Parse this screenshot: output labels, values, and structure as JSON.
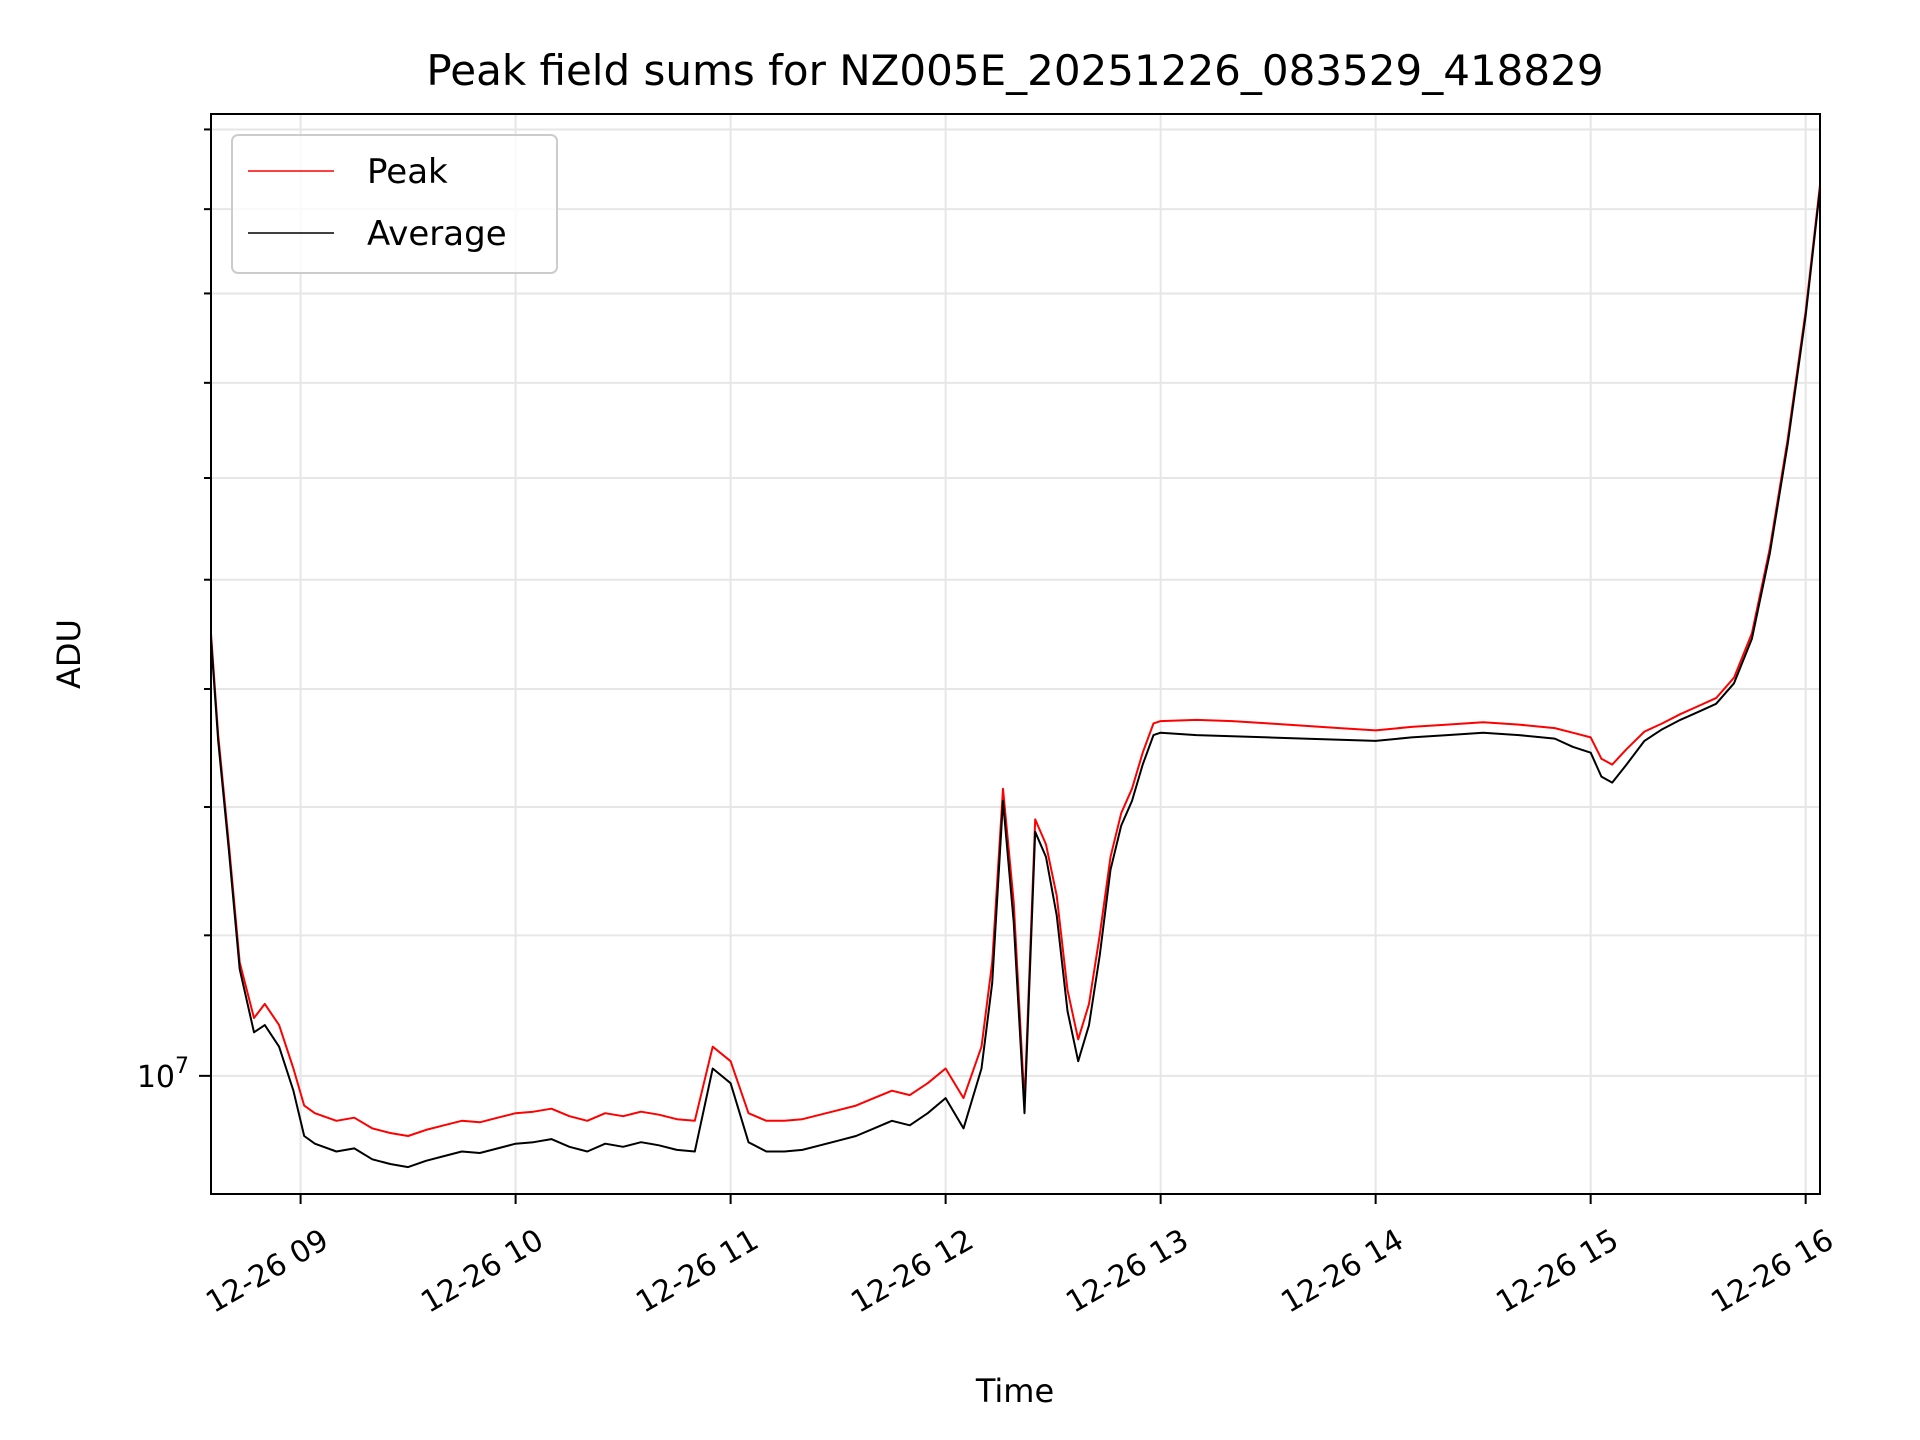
{
  "chart_data": {
    "type": "line",
    "title": "Peak field sums for NZ005E_20251226_083529_418829",
    "xlabel": "Time",
    "ylabel": "ADU",
    "y_scale": "log",
    "xlim": [
      "2025-12-26 08:35",
      "2025-12-26 16:04"
    ],
    "ylim": [
      9230000,
      19200000
    ],
    "x_ticks": [
      "12-26 09",
      "12-26 10",
      "12-26 11",
      "12-26 12",
      "12-26 13",
      "12-26 14",
      "12-26 15",
      "12-26 16"
    ],
    "y_tick_label_base": "10",
    "y_tick_label_exp": "7",
    "grid": true,
    "legend_position": "upper-left",
    "colors": {
      "peak": "#ff0000",
      "average": "#000000",
      "grid": "#e6e6e6"
    },
    "x": [
      "08:35",
      "08:37",
      "08:40",
      "08:43",
      "08:47",
      "08:50",
      "08:54",
      "08:58",
      "09:01",
      "09:04",
      "09:10",
      "09:15",
      "09:20",
      "09:25",
      "09:30",
      "09:35",
      "09:40",
      "09:45",
      "09:50",
      "09:55",
      "10:00",
      "10:05",
      "10:10",
      "10:15",
      "10:20",
      "10:25",
      "10:30",
      "10:35",
      "10:40",
      "10:45",
      "10:50",
      "10:55",
      "11:00",
      "11:05",
      "11:10",
      "11:15",
      "11:20",
      "11:25",
      "11:30",
      "11:35",
      "11:40",
      "11:45",
      "11:50",
      "11:55",
      "12:00",
      "12:05",
      "12:10",
      "12:13",
      "12:16",
      "12:19",
      "12:22",
      "12:25",
      "12:28",
      "12:31",
      "12:34",
      "12:37",
      "12:40",
      "12:43",
      "12:46",
      "12:49",
      "12:52",
      "12:55",
      "12:58",
      "13:00",
      "13:10",
      "13:20",
      "13:30",
      "13:40",
      "13:50",
      "14:00",
      "14:10",
      "14:20",
      "14:30",
      "14:40",
      "14:50",
      "14:55",
      "15:00",
      "15:03",
      "15:06",
      "15:10",
      "15:15",
      "15:20",
      "15:25",
      "15:30",
      "15:35",
      "15:40",
      "15:45",
      "15:50",
      "15:55",
      "16:00",
      "16:04"
    ],
    "series": [
      {
        "name": "Peak",
        "values": [
          13500000,
          12600000,
          11700000,
          10800000,
          10400000,
          10500000,
          10350000,
          10050000,
          9800000,
          9750000,
          9700000,
          9720000,
          9650000,
          9620000,
          9600000,
          9640000,
          9670000,
          9700000,
          9690000,
          9720000,
          9750000,
          9760000,
          9780000,
          9730000,
          9700000,
          9750000,
          9730000,
          9760000,
          9740000,
          9710000,
          9700000,
          10200000,
          10100000,
          9750000,
          9700000,
          9700000,
          9710000,
          9740000,
          9770000,
          9800000,
          9850000,
          9900000,
          9870000,
          9950000,
          10050000,
          9850000,
          10200000,
          10800000,
          12150000,
          11250000,
          9820000,
          11900000,
          11700000,
          11300000,
          10600000,
          10250000,
          10500000,
          11000000,
          11600000,
          11950000,
          12150000,
          12450000,
          12700000,
          12720000,
          12730000,
          12720000,
          12700000,
          12680000,
          12660000,
          12640000,
          12670000,
          12690000,
          12710000,
          12690000,
          12660000,
          12620000,
          12580000,
          12400000,
          12350000,
          12480000,
          12630000,
          12700000,
          12780000,
          12850000,
          12920000,
          13100000,
          13500000,
          14300000,
          15400000,
          16800000,
          18300000
        ]
      },
      {
        "name": "Average",
        "values": [
          13450000,
          12550000,
          11650000,
          10750000,
          10300000,
          10350000,
          10200000,
          9900000,
          9600000,
          9550000,
          9500000,
          9520000,
          9450000,
          9420000,
          9400000,
          9440000,
          9470000,
          9500000,
          9490000,
          9520000,
          9550000,
          9560000,
          9580000,
          9530000,
          9500000,
          9550000,
          9530000,
          9560000,
          9540000,
          9510000,
          9500000,
          10050000,
          9950000,
          9560000,
          9500000,
          9500000,
          9510000,
          9540000,
          9570000,
          9600000,
          9650000,
          9700000,
          9670000,
          9750000,
          9850000,
          9650000,
          10050000,
          10650000,
          12050000,
          11100000,
          9750000,
          11800000,
          11600000,
          11150000,
          10450000,
          10100000,
          10350000,
          10850000,
          11500000,
          11850000,
          12050000,
          12350000,
          12600000,
          12620000,
          12600000,
          12590000,
          12580000,
          12570000,
          12560000,
          12550000,
          12580000,
          12600000,
          12620000,
          12600000,
          12570000,
          12500000,
          12450000,
          12250000,
          12200000,
          12350000,
          12550000,
          12650000,
          12730000,
          12800000,
          12870000,
          13050000,
          13450000,
          14250000,
          15350000,
          16750000,
          18250000
        ]
      }
    ]
  }
}
